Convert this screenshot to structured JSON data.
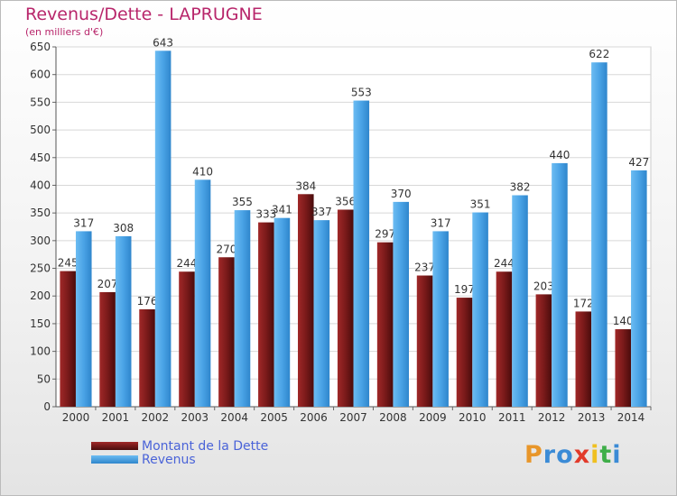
{
  "chart_data": {
    "type": "bar",
    "title": "Revenus/Dette - LAPRUGNE",
    "subtitle": "(en milliers d'€)",
    "categories": [
      "2000",
      "2001",
      "2002",
      "2003",
      "2004",
      "2005",
      "2006",
      "2007",
      "2008",
      "2009",
      "2010",
      "2011",
      "2012",
      "2013",
      "2014"
    ],
    "series": [
      {
        "name": "Montant de la Dette",
        "color": "#7a1a1a",
        "values": [
          245,
          207,
          176,
          244,
          270,
          333,
          384,
          356,
          297,
          237,
          197,
          244,
          203,
          172,
          140
        ]
      },
      {
        "name": "Revenus",
        "color": "#4aa3e6",
        "values": [
          317,
          308,
          643,
          410,
          355,
          341,
          337,
          553,
          370,
          317,
          351,
          382,
          440,
          622,
          427
        ]
      }
    ],
    "yticks": [
      0,
      50,
      100,
      150,
      200,
      250,
      300,
      350,
      400,
      450,
      500,
      550,
      600,
      650
    ],
    "ylim": [
      0,
      650
    ],
    "grid": true,
    "legend": "bottom-left"
  },
  "logo": {
    "letters": [
      "P",
      "r",
      "o",
      "x",
      "i",
      "t",
      "i"
    ],
    "colors": [
      "#e8962a",
      "#3b8bd6",
      "#3b8bd6",
      "#e23a2a",
      "#f0c020",
      "#3fae49",
      "#3b8bd6"
    ]
  }
}
